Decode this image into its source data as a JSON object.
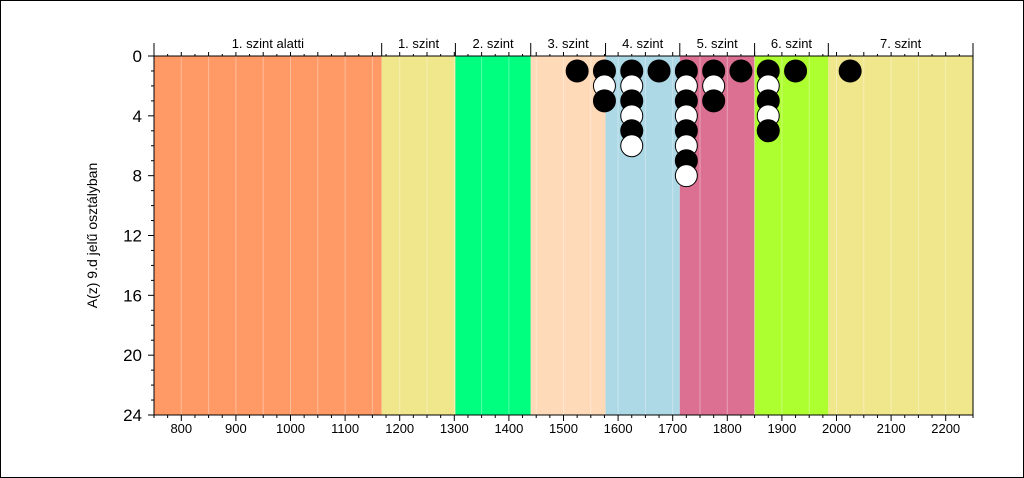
{
  "chart_data": {
    "type": "scatter",
    "title": "",
    "xlabel": "",
    "ylabel": "A(z) 9.d jelű osztályban",
    "xlim": [
      750,
      2250
    ],
    "ylim": [
      0,
      24
    ],
    "y_inverted": true,
    "x_ticks": [
      800,
      900,
      1000,
      1100,
      1200,
      1300,
      1400,
      1500,
      1600,
      1700,
      1800,
      1900,
      2000,
      2100,
      2200
    ],
    "y_ticks": [
      0,
      4,
      8,
      12,
      16,
      20,
      24
    ],
    "grid": "vertical minor lines",
    "bands": [
      {
        "label": "1. szint alatti",
        "from": 750,
        "to": 1167,
        "color": "#FF9966"
      },
      {
        "label": "1. szint",
        "from": 1167,
        "to": 1302,
        "color": "#F0E68C"
      },
      {
        "label": "2. szint",
        "from": 1302,
        "to": 1440,
        "color": "#00FF7F"
      },
      {
        "label": "3. szint",
        "from": 1440,
        "to": 1577,
        "color": "#FFDAB9"
      },
      {
        "label": "4. szint",
        "from": 1577,
        "to": 1713,
        "color": "#ADD8E6"
      },
      {
        "label": "5. szint",
        "from": 1713,
        "to": 1850,
        "color": "#DB7093"
      },
      {
        "label": "6. szint",
        "from": 1850,
        "to": 1985,
        "color": "#ADFF2F"
      },
      {
        "label": "7. szint",
        "from": 1985,
        "to": 2250,
        "color": "#F0E68C"
      }
    ],
    "series": [
      {
        "marker_colors": [
          "#000000",
          "#ffffff"
        ],
        "points": [
          {
            "x": 1525,
            "count": 1
          },
          {
            "x": 1575,
            "count": 3
          },
          {
            "x": 1625,
            "count": 6
          },
          {
            "x": 1675,
            "count": 1
          },
          {
            "x": 1725,
            "count": 8
          },
          {
            "x": 1775,
            "count": 3
          },
          {
            "x": 1825,
            "count": 1
          },
          {
            "x": 1875,
            "count": 5
          },
          {
            "x": 1925,
            "count": 1
          },
          {
            "x": 2025,
            "count": 1
          }
        ]
      }
    ]
  }
}
